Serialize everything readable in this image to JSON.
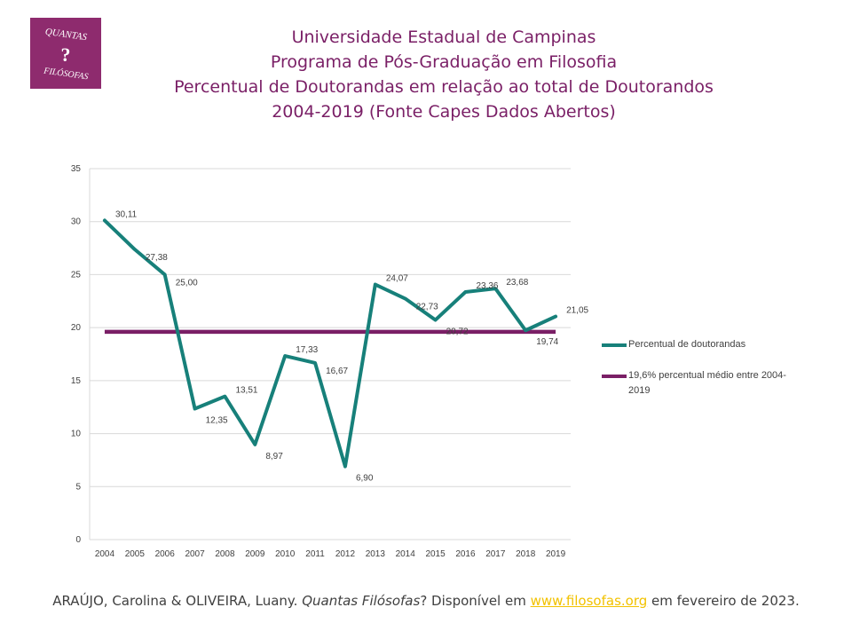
{
  "logo": {
    "top": "QUANTAS",
    "mark": "?",
    "bottom": "FILÓSOFAS"
  },
  "titles": [
    "Universidade Estadual de Campinas",
    "Programa de Pós-Graduação em Filosofia",
    "Percentual de Doutorandas em relação ao total de Doutorandos",
    "2004-2019 (Fonte Capes Dados Abertos)"
  ],
  "colors": {
    "series": "#17807a",
    "average": "#7a1f66",
    "title": "#7a1f66",
    "link": "#f2c200"
  },
  "chart_data": {
    "type": "line",
    "categories": [
      "2004",
      "2005",
      "2006",
      "2007",
      "2008",
      "2009",
      "2010",
      "2011",
      "2012",
      "2013",
      "2014",
      "2015",
      "2016",
      "2017",
      "2018",
      "2019"
    ],
    "series": [
      {
        "name": "Percentual de doutorandas",
        "values": [
          30.11,
          27.38,
          25.0,
          12.35,
          13.51,
          8.97,
          17.33,
          16.67,
          6.9,
          24.07,
          22.73,
          20.72,
          23.36,
          23.68,
          19.74,
          21.05
        ],
        "labels": [
          "30,11",
          "27,38",
          "25,00",
          "12,35",
          "13,51",
          "8,97",
          "17,33",
          "16,67",
          "6,90",
          "24,07",
          "22,73",
          "20,72",
          "23,36",
          "23,68",
          "19,74",
          "21,05"
        ]
      },
      {
        "name": "19,6% percentual médio entre 2004-2019",
        "constant": 19.6
      }
    ],
    "yticks": [
      "0",
      "5",
      "10",
      "15",
      "20",
      "25",
      "30",
      "35"
    ],
    "ylim": [
      0,
      35
    ],
    "grid": true,
    "legend": "right"
  },
  "legend": {
    "series_label": "Percentual de doutorandas",
    "average_label": "19,6% percentual médio entre 2004-2019"
  },
  "footer": {
    "authors": "ARAÚJO, Carolina & OLIVEIRA, Luany.",
    "work": "Quantas Filósofas",
    "after_work": "? Disponível em",
    "link": "www.filosofas.org",
    "tail": "em fevereiro de 2023."
  }
}
